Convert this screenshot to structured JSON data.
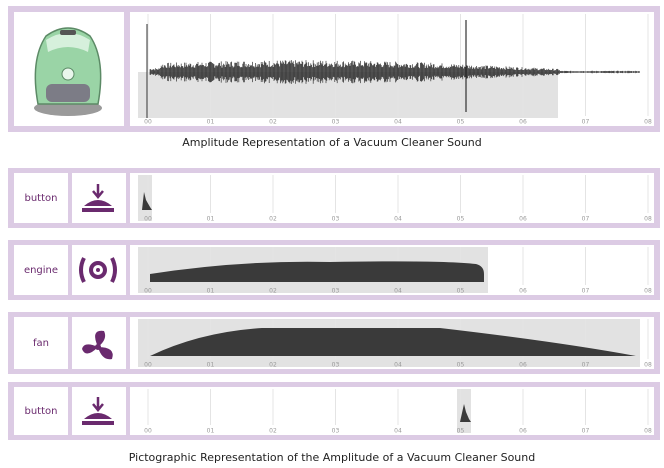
{
  "time_ticks": [
    "00",
    "01",
    "02",
    "03",
    "04",
    "05",
    "06",
    "07",
    "08"
  ],
  "top_caption": "Amplitude Representation of a Vacuum Cleaner Sound",
  "tracks": [
    {
      "label": "button"
    },
    {
      "label": "engine"
    },
    {
      "label": "fan"
    },
    {
      "label": "button"
    }
  ],
  "bottom_caption": "Pictographic Representation of the Amplitude of a Vacuum Cleaner Sound"
}
